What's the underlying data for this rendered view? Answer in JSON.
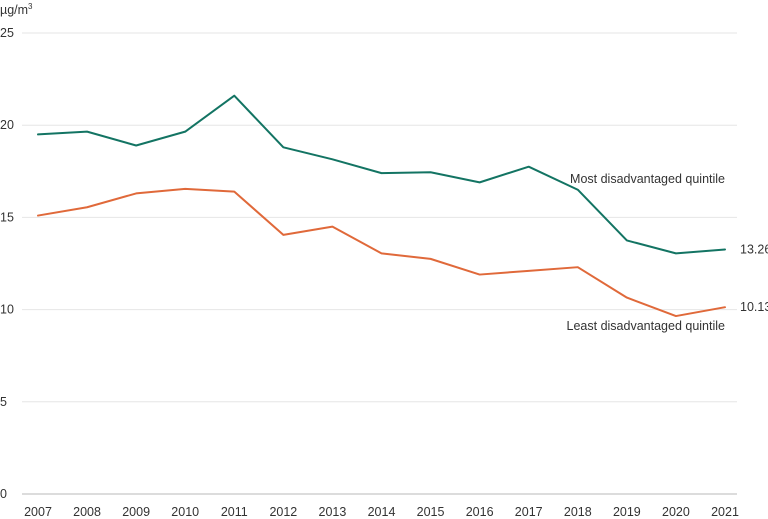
{
  "chart_data": {
    "type": "line",
    "unit_label": "µg/m",
    "unit_superscript": "3",
    "x": [
      "2007",
      "2008",
      "2009",
      "2010",
      "2011",
      "2012",
      "2013",
      "2014",
      "2015",
      "2016",
      "2017",
      "2018",
      "2019",
      "2020",
      "2021"
    ],
    "ylim": [
      0,
      25
    ],
    "yticks": [
      0,
      5,
      10,
      15,
      20,
      25
    ],
    "grid": true,
    "series": [
      {
        "name": "Most disadvantaged quintile",
        "color": "#137463",
        "values": [
          19.5,
          19.65,
          18.9,
          19.65,
          21.6,
          18.8,
          18.15,
          17.4,
          17.45,
          16.9,
          17.75,
          16.5,
          13.75,
          13.05,
          13.26
        ],
        "end_label": "13.26"
      },
      {
        "name": "Least disadvantaged quintile",
        "color": "#e0693a",
        "values": [
          15.1,
          15.55,
          16.3,
          16.55,
          16.4,
          14.05,
          14.5,
          13.05,
          12.75,
          11.9,
          12.1,
          12.3,
          10.65,
          9.65,
          10.13
        ],
        "end_label": "10.13"
      }
    ]
  }
}
